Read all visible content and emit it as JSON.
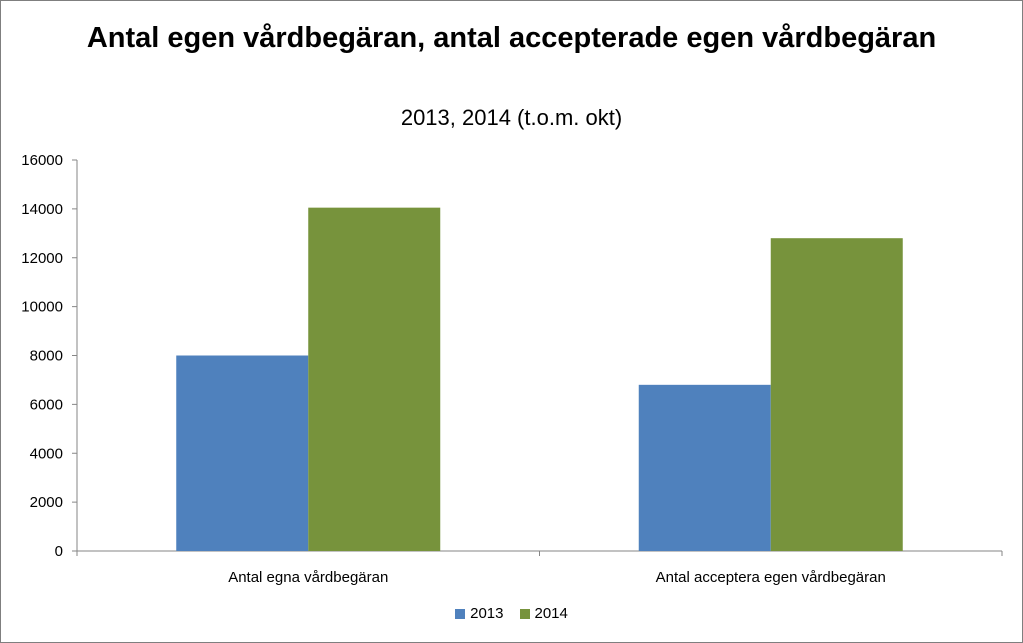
{
  "chart_data": {
    "type": "bar",
    "title": "Antal egen vårdbegäran, antal accepterade egen vårdbegäran",
    "subtitle": "2013, 2014 (t.o.m. okt)",
    "categories": [
      "Antal egna vårdbegäran",
      "Antal acceptera egen vårdbegäran"
    ],
    "series": [
      {
        "name": "2013",
        "color": "#4f81bd",
        "values": [
          8000,
          6800
        ]
      },
      {
        "name": "2014",
        "color": "#77933c",
        "values": [
          14050,
          12800
        ]
      }
    ],
    "ylim": [
      0,
      16000
    ],
    "yticks": [
      "0",
      "2000",
      "4000",
      "6000",
      "8000",
      "10000",
      "12000",
      "14000",
      "16000"
    ],
    "grid": false,
    "legend": "bottom"
  }
}
